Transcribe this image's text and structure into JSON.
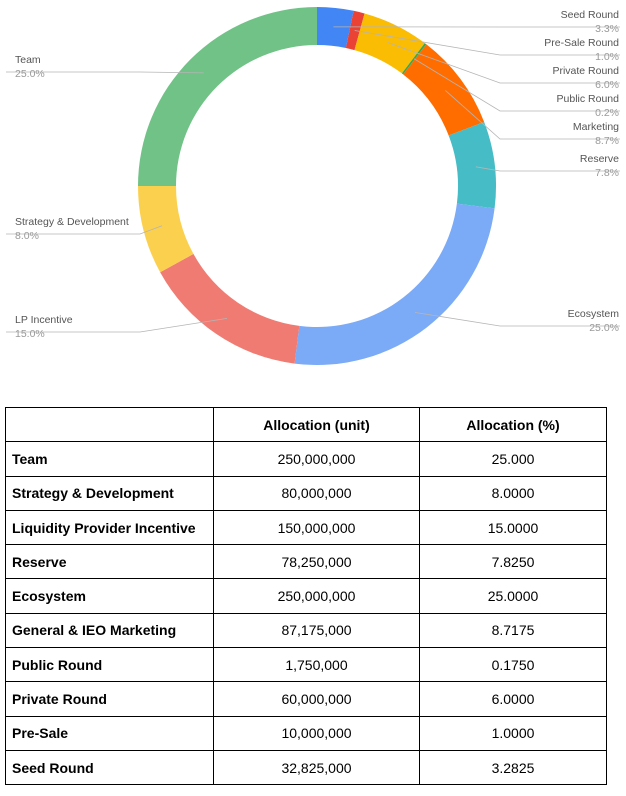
{
  "chart_data": {
    "type": "pie",
    "style": "donut",
    "slices": [
      {
        "label": "Seed Round",
        "percent_label": "3.3%",
        "value": 3.2825,
        "color": "#4285f4"
      },
      {
        "label": "Pre-Sale Round",
        "percent_label": "1.0%",
        "value": 1.0,
        "color": "#ea4335"
      },
      {
        "label": "Private Round",
        "percent_label": "6.0%",
        "value": 6.0,
        "color": "#fbbc04"
      },
      {
        "label": "Public Round",
        "percent_label": "0.2%",
        "value": 0.175,
        "color": "#34a853"
      },
      {
        "label": "Marketing",
        "percent_label": "8.7%",
        "value": 8.7175,
        "color": "#ff6d01"
      },
      {
        "label": "Reserve",
        "percent_label": "7.8%",
        "value": 7.825,
        "color": "#46bdc6"
      },
      {
        "label": "Ecosystem",
        "percent_label": "25.0%",
        "value": 25.0,
        "color": "#7baaf7"
      },
      {
        "label": "LP Incentive",
        "percent_label": "15.0%",
        "value": 15.0,
        "color": "#f07b72"
      },
      {
        "label": "Strategy & Development",
        "percent_label": "8.0%",
        "value": 8.0,
        "color": "#fcd04f"
      },
      {
        "label": "Team",
        "percent_label": "25.0%",
        "value": 25.0,
        "color": "#71c287"
      }
    ]
  },
  "table": {
    "headers": [
      "",
      "Allocation (unit)",
      "Allocation (%)"
    ],
    "rows": [
      {
        "name": "Team",
        "unit": "250,000,000",
        "pct": "25.000"
      },
      {
        "name": "Strategy & Development",
        "unit": "80,000,000",
        "pct": "8.0000"
      },
      {
        "name": "Liquidity Provider Incentive",
        "unit": "150,000,000",
        "pct": "15.0000"
      },
      {
        "name": "Reserve",
        "unit": "78,250,000",
        "pct": "7.8250"
      },
      {
        "name": "Ecosystem",
        "unit": "250,000,000",
        "pct": "25.0000"
      },
      {
        "name": "General & IEO Marketing",
        "unit": "87,175,000",
        "pct": "8.7175"
      },
      {
        "name": "Public Round",
        "unit": "1,750,000",
        "pct": "0.1750"
      },
      {
        "name": "Private Round",
        "unit": "60,000,000",
        "pct": "6.0000"
      },
      {
        "name": "Pre-Sale",
        "unit": "10,000,000",
        "pct": "1.0000"
      },
      {
        "name": "Seed Round",
        "unit": "32,825,000",
        "pct": "3.2825"
      }
    ]
  }
}
